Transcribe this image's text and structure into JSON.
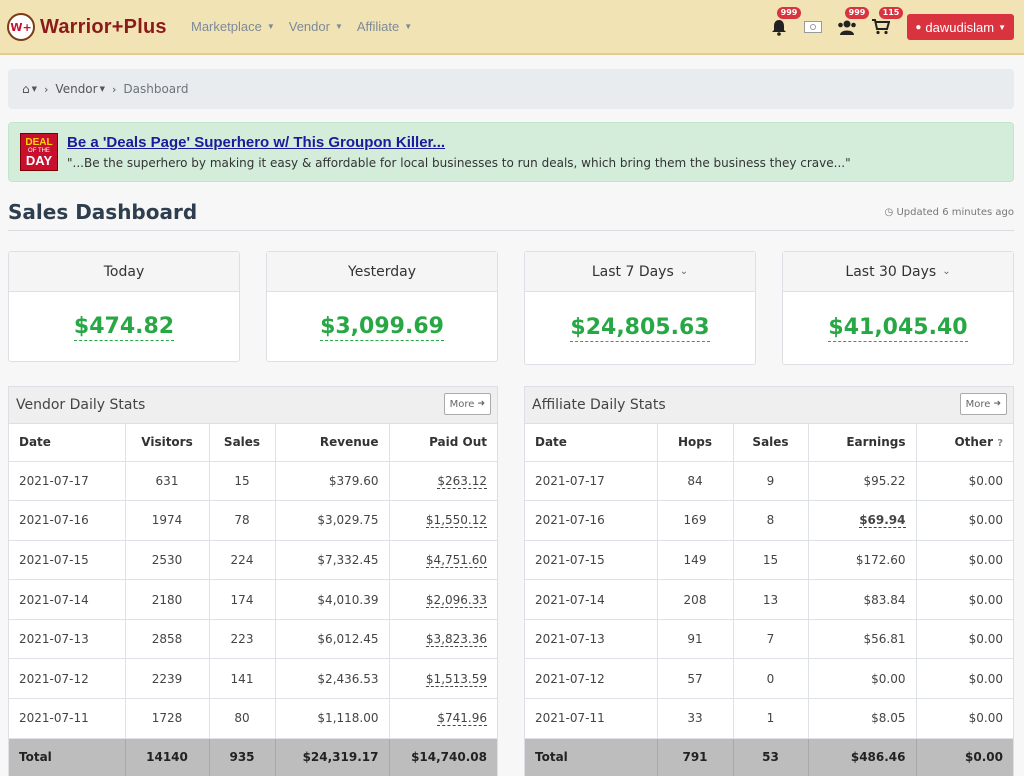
{
  "brand": {
    "logo_mark": "W+",
    "name": "Warrior+Plus"
  },
  "nav": {
    "menu": [
      "Marketplace",
      "Vendor",
      "Affiliate"
    ],
    "icons": [
      {
        "name": "bell-icon",
        "badge": "999"
      },
      {
        "name": "money-icon",
        "badge": ""
      },
      {
        "name": "users-icon",
        "badge": "999"
      },
      {
        "name": "cart-icon",
        "badge": "115"
      }
    ],
    "user": "dawudislam"
  },
  "breadcrumb": {
    "section": "Vendor",
    "current": "Dashboard"
  },
  "deal": {
    "logo_line1": "DEAL",
    "logo_line2": "OF THE",
    "logo_line3": "DAY",
    "title": "Be a 'Deals Page' Superhero w/ This Groupon Killer...",
    "description": "\"...Be the superhero by making it easy & affordable for local businesses to run deals, which bring them the business they crave...\""
  },
  "page": {
    "title": "Sales Dashboard",
    "updated": "Updated 6 minutes ago"
  },
  "cards": [
    {
      "label": "Today",
      "value": "$474.82",
      "has_icon": false
    },
    {
      "label": "Yesterday",
      "value": "$3,099.69",
      "has_icon": false
    },
    {
      "label": "Last 7 Days",
      "value": "$24,805.63",
      "has_icon": true
    },
    {
      "label": "Last 30 Days",
      "value": "$41,045.40",
      "has_icon": true
    }
  ],
  "vendor_stats": {
    "title": "Vendor Daily Stats",
    "more_label": "More",
    "columns": [
      "Date",
      "Visitors",
      "Sales",
      "Revenue",
      "Paid Out"
    ],
    "rows": [
      [
        "2021-07-17",
        "631",
        "15",
        "$379.60",
        "$263.12"
      ],
      [
        "2021-07-16",
        "1974",
        "78",
        "$3,029.75",
        "$1,550.12"
      ],
      [
        "2021-07-15",
        "2530",
        "224",
        "$7,332.45",
        "$4,751.60"
      ],
      [
        "2021-07-14",
        "2180",
        "174",
        "$4,010.39",
        "$2,096.33"
      ],
      [
        "2021-07-13",
        "2858",
        "223",
        "$6,012.45",
        "$3,823.36"
      ],
      [
        "2021-07-12",
        "2239",
        "141",
        "$2,436.53",
        "$1,513.59"
      ],
      [
        "2021-07-11",
        "1728",
        "80",
        "$1,118.00",
        "$741.96"
      ]
    ],
    "total": [
      "Total",
      "14140",
      "935",
      "$24,319.17",
      "$14,740.08"
    ]
  },
  "affiliate_stats": {
    "title": "Affiliate Daily Stats",
    "more_label": "More",
    "columns": [
      "Date",
      "Hops",
      "Sales",
      "Earnings",
      "Other"
    ],
    "rows": [
      [
        "2021-07-17",
        "84",
        "9",
        "$95.22",
        "$0.00"
      ],
      [
        "2021-07-16",
        "169",
        "8",
        "$69.94",
        "$0.00"
      ],
      [
        "2021-07-15",
        "149",
        "15",
        "$172.60",
        "$0.00"
      ],
      [
        "2021-07-14",
        "208",
        "13",
        "$83.84",
        "$0.00"
      ],
      [
        "2021-07-13",
        "91",
        "7",
        "$56.81",
        "$0.00"
      ],
      [
        "2021-07-12",
        "57",
        "0",
        "$0.00",
        "$0.00"
      ],
      [
        "2021-07-11",
        "33",
        "1",
        "$8.05",
        "$0.00"
      ]
    ],
    "total": [
      "Total",
      "791",
      "53",
      "$486.46",
      "$0.00"
    ]
  },
  "colors": {
    "accent_red": "#d9333f",
    "money_green": "#28a745",
    "nav_bg": "#f1e3b4",
    "deal_bg": "#d4edda"
  }
}
